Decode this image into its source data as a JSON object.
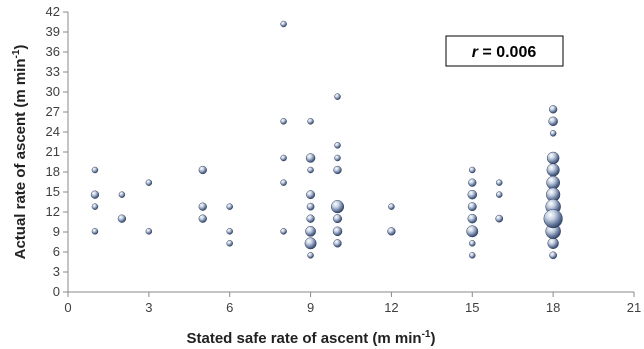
{
  "chart_data": {
    "type": "scatter",
    "title": "",
    "xlabel": "Stated safe rate of ascent (m min",
    "xlabel_sup": "-1",
    "xlabel_end": ")",
    "ylabel": "Actual rate of ascent (m min",
    "ylabel_sup": "-1",
    "ylabel_end": ")",
    "xlim": [
      0,
      21
    ],
    "ylim": [
      0,
      42
    ],
    "xticks": [
      0,
      3,
      6,
      9,
      12,
      15,
      18,
      21
    ],
    "yticks": [
      0,
      3,
      6,
      9,
      12,
      15,
      18,
      21,
      24,
      27,
      30,
      33,
      36,
      39,
      42
    ],
    "grid": false,
    "annotation": {
      "var": "r",
      "text": " = 0.006"
    },
    "colors": {
      "bubble_dark": "#34476b",
      "bubble_mid": "#7a8db0",
      "bubble_light": "#e9eef6",
      "axis": "#888888"
    },
    "points": [
      {
        "x": 1,
        "y": 18.3,
        "r": 1
      },
      {
        "x": 1,
        "y": 14.6,
        "r": 1.3
      },
      {
        "x": 1,
        "y": 12.8,
        "r": 1
      },
      {
        "x": 1,
        "y": 9.1,
        "r": 1
      },
      {
        "x": 2,
        "y": 14.6,
        "r": 1
      },
      {
        "x": 2,
        "y": 11,
        "r": 1.3
      },
      {
        "x": 3,
        "y": 16.4,
        "r": 1
      },
      {
        "x": 3,
        "y": 9.1,
        "r": 1
      },
      {
        "x": 5,
        "y": 18.3,
        "r": 1.3
      },
      {
        "x": 5,
        "y": 12.8,
        "r": 1.3
      },
      {
        "x": 5,
        "y": 11,
        "r": 1.3
      },
      {
        "x": 6,
        "y": 12.8,
        "r": 1
      },
      {
        "x": 6,
        "y": 9.1,
        "r": 1
      },
      {
        "x": 6,
        "y": 7.3,
        "r": 1
      },
      {
        "x": 8,
        "y": 40.2,
        "r": 1
      },
      {
        "x": 8,
        "y": 25.6,
        "r": 1
      },
      {
        "x": 8,
        "y": 20.1,
        "r": 1
      },
      {
        "x": 8,
        "y": 16.4,
        "r": 1
      },
      {
        "x": 8,
        "y": 9.1,
        "r": 1
      },
      {
        "x": 9,
        "y": 25.6,
        "r": 1
      },
      {
        "x": 9,
        "y": 20.1,
        "r": 1.5
      },
      {
        "x": 9,
        "y": 18.3,
        "r": 1
      },
      {
        "x": 9,
        "y": 14.6,
        "r": 1.4
      },
      {
        "x": 9,
        "y": 12.8,
        "r": 1.2
      },
      {
        "x": 9,
        "y": 11,
        "r": 1.3
      },
      {
        "x": 9,
        "y": 9.1,
        "r": 1.7
      },
      {
        "x": 9,
        "y": 7.3,
        "r": 1.9
      },
      {
        "x": 9,
        "y": 5.5,
        "r": 1
      },
      {
        "x": 10,
        "y": 29.3,
        "r": 1
      },
      {
        "x": 10,
        "y": 22,
        "r": 1
      },
      {
        "x": 10,
        "y": 20.1,
        "r": 1
      },
      {
        "x": 10,
        "y": 18.3,
        "r": 1.3
      },
      {
        "x": 10,
        "y": 12.8,
        "r": 2.1
      },
      {
        "x": 10,
        "y": 11,
        "r": 1.4
      },
      {
        "x": 10,
        "y": 9.1,
        "r": 1.5
      },
      {
        "x": 10,
        "y": 7.3,
        "r": 1.3
      },
      {
        "x": 12,
        "y": 12.8,
        "r": 1
      },
      {
        "x": 12,
        "y": 9.1,
        "r": 1.3
      },
      {
        "x": 15,
        "y": 18.3,
        "r": 1
      },
      {
        "x": 15,
        "y": 16.4,
        "r": 1.3
      },
      {
        "x": 15,
        "y": 14.6,
        "r": 1.5
      },
      {
        "x": 15,
        "y": 12.8,
        "r": 1.4
      },
      {
        "x": 15,
        "y": 11,
        "r": 1.5
      },
      {
        "x": 15,
        "y": 9.1,
        "r": 1.9
      },
      {
        "x": 15,
        "y": 7.3,
        "r": 1
      },
      {
        "x": 15,
        "y": 5.5,
        "r": 1
      },
      {
        "x": 16,
        "y": 16.4,
        "r": 1
      },
      {
        "x": 16,
        "y": 14.6,
        "r": 1
      },
      {
        "x": 16,
        "y": 11,
        "r": 1.2
      },
      {
        "x": 18,
        "y": 27.4,
        "r": 1.3
      },
      {
        "x": 18,
        "y": 25.6,
        "r": 1.5
      },
      {
        "x": 18,
        "y": 23.8,
        "r": 1
      },
      {
        "x": 18,
        "y": 20.1,
        "r": 2
      },
      {
        "x": 18,
        "y": 18.3,
        "r": 2.1
      },
      {
        "x": 18,
        "y": 16.4,
        "r": 2.2
      },
      {
        "x": 18,
        "y": 14.6,
        "r": 2.3
      },
      {
        "x": 18,
        "y": 12.8,
        "r": 2.5
      },
      {
        "x": 18,
        "y": 11,
        "r": 3.1
      },
      {
        "x": 18,
        "y": 9.1,
        "r": 2.5
      },
      {
        "x": 18,
        "y": 7.3,
        "r": 1.8
      },
      {
        "x": 18,
        "y": 5.5,
        "r": 1.2
      }
    ]
  }
}
